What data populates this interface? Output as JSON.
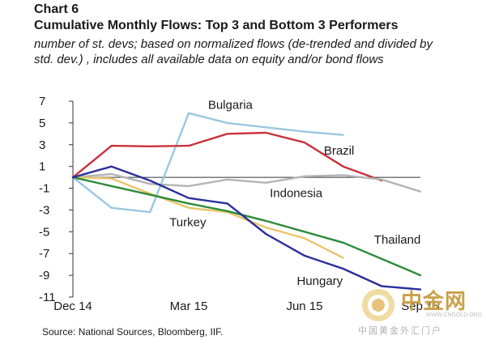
{
  "header": {
    "chart_label": "Chart 6",
    "title": "Cumulative Monthly Flows: Top 3 and Bottom 3 Performers",
    "subtitle": "number of st. devs; based on normalized flows (de-trended and divided by std. dev.) , includes all available data on equity and/or bond flows"
  },
  "source": "Source: National Sources, Bloomberg, IIF.",
  "watermark": {
    "text": "中金网",
    "sub": "中国黄金外汇门户",
    "url": "WWW.CNGOLD.ORG"
  },
  "chart_data": {
    "type": "line",
    "x": [
      0,
      1,
      2,
      3,
      4,
      5,
      6,
      7,
      8,
      9
    ],
    "x_tick_labels": [
      {
        "x": 0,
        "label": "Dec 14"
      },
      {
        "x": 3,
        "label": "Mar 15"
      },
      {
        "x": 6,
        "label": "Jun 15"
      },
      {
        "x": 9,
        "label": "Sep 15"
      }
    ],
    "xlim": [
      0,
      9
    ],
    "ylim": [
      -11,
      7
    ],
    "yticks": [
      7,
      5,
      3,
      1,
      -1,
      -3,
      -5,
      -7,
      -9,
      -11
    ],
    "grid": false,
    "series": [
      {
        "name": "Bulgaria",
        "color": "#9ac8e0",
        "values": [
          0,
          -2.8,
          -3.2,
          5.9,
          5.0,
          4.6,
          4.2,
          3.9,
          null,
          null
        ]
      },
      {
        "name": "Brazil",
        "color": "#c8323c",
        "values": [
          0,
          2.9,
          2.85,
          2.9,
          4.0,
          4.1,
          3.2,
          1.0,
          -0.3,
          null
        ]
      },
      {
        "name": "Indonesia",
        "color": "#b4b4b4",
        "values": [
          0,
          0.3,
          -0.6,
          -0.8,
          -0.2,
          -0.5,
          0.1,
          0.2,
          -0.2,
          -1.3
        ]
      },
      {
        "name": "Turkey",
        "color": "#e8c46a",
        "values": [
          0,
          -0.1,
          -1.5,
          -2.8,
          -3.2,
          -4.6,
          -5.6,
          -7.4,
          null,
          null
        ]
      },
      {
        "name": "Thailand",
        "color": "#2e8b3a",
        "values": [
          0,
          -0.8,
          -1.6,
          -2.4,
          -3.1,
          -4.0,
          -5.0,
          -6.0,
          -7.5,
          -9.0
        ]
      },
      {
        "name": "Hungary",
        "color": "#2c2f9a",
        "values": [
          0,
          1.0,
          -0.3,
          -1.9,
          -2.4,
          -5.2,
          -7.2,
          -8.4,
          -10.0,
          -10.3
        ]
      }
    ]
  }
}
